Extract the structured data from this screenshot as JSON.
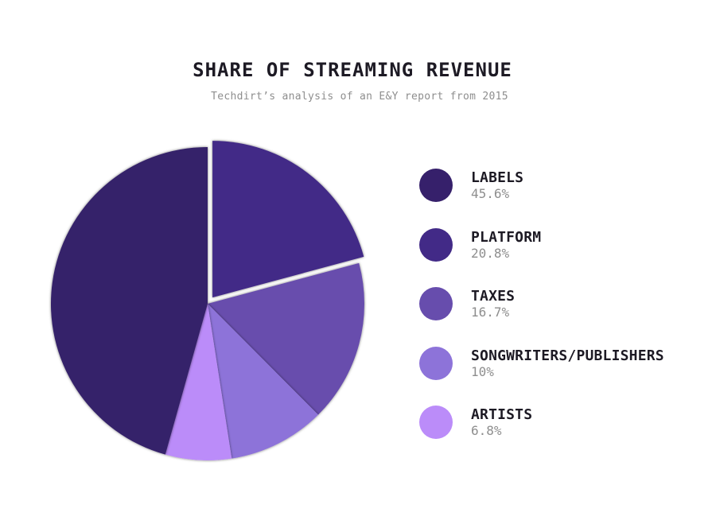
{
  "chart_data": {
    "type": "pie",
    "title": "SHARE OF STREAMING REVENUE",
    "subtitle": "Techdirt’s analysis of an E&Y report from 2015",
    "exploded": "PLATFORM",
    "slices": [
      {
        "label": "LABELS",
        "value": 45.6,
        "display": "45.6%",
        "color": "#36206b"
      },
      {
        "label": "PLATFORM",
        "value": 20.8,
        "display": "20.8%",
        "color": "#422a87"
      },
      {
        "label": "TAXES",
        "value": 16.7,
        "display": "16.7%",
        "color": "#674dad"
      },
      {
        "label": "SONGWRITERS/PUBLISHERS",
        "value": 10,
        "display": "10%",
        "color": "#8d73d9"
      },
      {
        "label": "ARTISTS",
        "value": 6.8,
        "display": "6.8%",
        "color": "#bb8cf9"
      }
    ]
  }
}
